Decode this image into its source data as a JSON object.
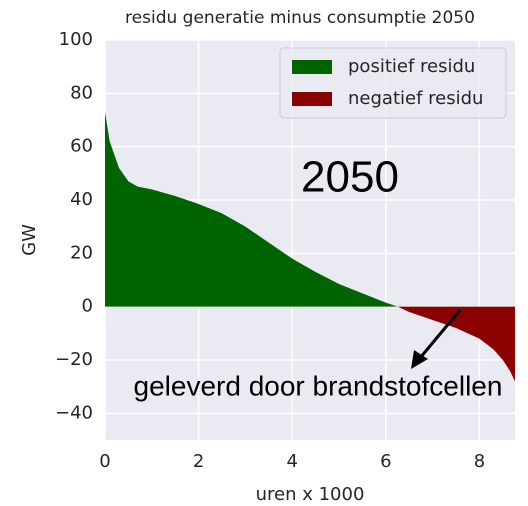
{
  "chart_data": {
    "type": "area",
    "title": "residu generatie minus consumptie 2050",
    "xlabel": "uren x 1000",
    "ylabel": "GW",
    "series": [
      {
        "name": "positief residu",
        "color": "#006400",
        "x": [
          0,
          0.1,
          0.3,
          0.5,
          0.7,
          1.0,
          1.5,
          2.0,
          2.5,
          3.0,
          3.5,
          4.0,
          4.5,
          5.0,
          5.5,
          6.0,
          6.25
        ],
        "values": [
          73,
          62,
          52,
          47,
          45,
          44,
          41.5,
          38.5,
          35,
          30,
          24,
          18,
          13,
          8.5,
          5,
          1.5,
          0
        ]
      },
      {
        "name": "negatief residu",
        "color": "#8b0000",
        "x": [
          6.25,
          6.5,
          7.0,
          7.5,
          8.0,
          8.3,
          8.5,
          8.65,
          8.76
        ],
        "values": [
          0,
          -2,
          -5,
          -8,
          -12,
          -16,
          -20,
          -24,
          -28
        ]
      }
    ],
    "xlim": [
      0,
      8.76
    ],
    "ylim": [
      -50,
      100
    ],
    "xticks": [
      0,
      2,
      4,
      6,
      8
    ],
    "yticks": [
      {
        "value": -40,
        "label": "−40"
      },
      {
        "value": -20,
        "label": "−20"
      },
      0,
      20,
      40,
      60,
      80,
      100
    ],
    "grid": true,
    "legend": "upper right",
    "annotations": [
      "2050",
      "geleverd door brandstofcellen"
    ]
  }
}
